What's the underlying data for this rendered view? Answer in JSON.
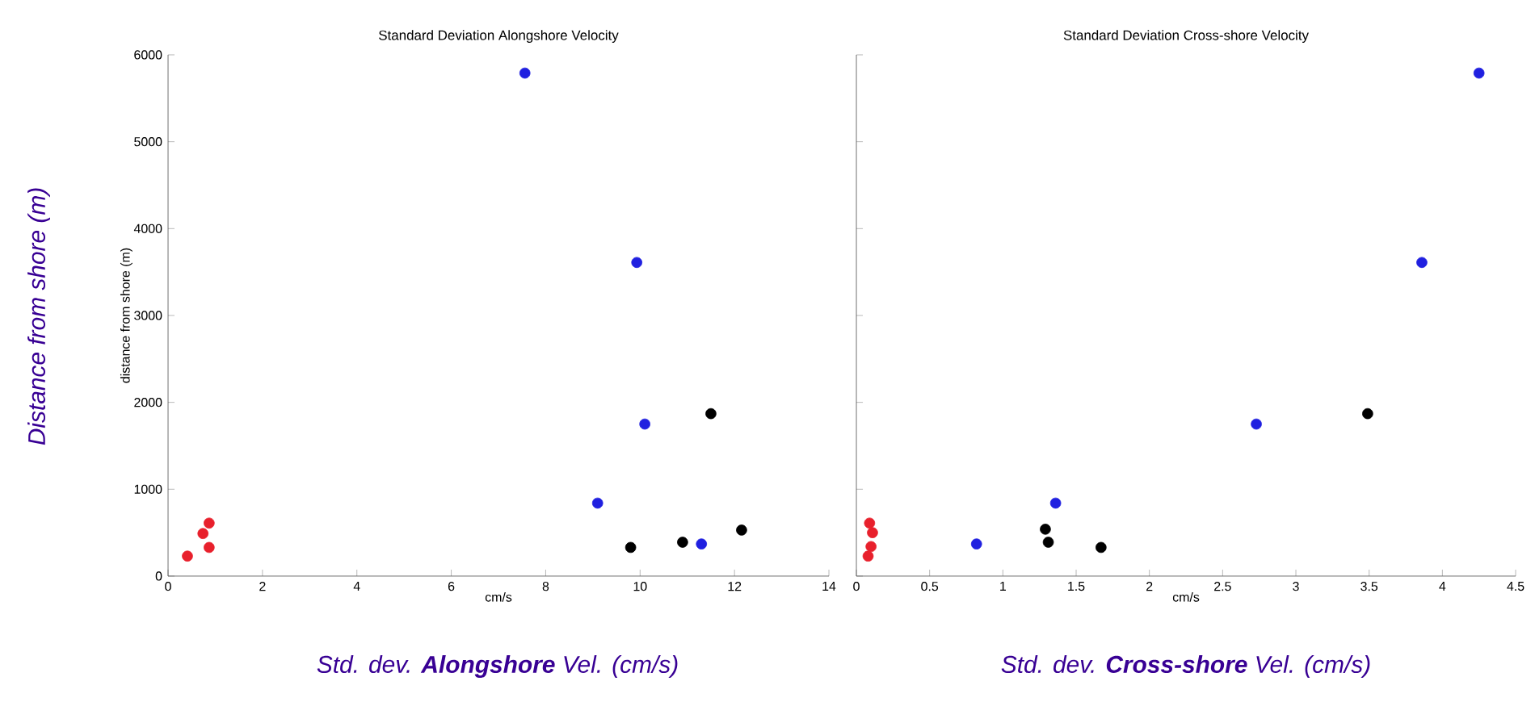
{
  "chart_data": [
    {
      "type": "scatter",
      "title": "Standard Deviation Alongshore Velocity",
      "xlabel": "cm/s",
      "ylabel": "distance from shore (m)",
      "xlim": [
        0,
        14
      ],
      "xticks": [
        0,
        2,
        4,
        6,
        8,
        10,
        12,
        14
      ],
      "ylim": [
        0,
        6000
      ],
      "yticks": [
        0,
        1000,
        2000,
        3000,
        4000,
        5000,
        6000
      ],
      "series": [
        {
          "color": "#2020e0",
          "x": [
            7.56,
            9.93,
            10.1,
            9.1,
            11.3
          ],
          "values": [
            5790,
            3610,
            1750,
            840,
            370
          ]
        },
        {
          "color": "#000000",
          "x": [
            11.5,
            12.15,
            10.9,
            9.8
          ],
          "values": [
            1870,
            530,
            390,
            330
          ]
        },
        {
          "color": "#e8202c",
          "x": [
            0.41,
            0.74,
            0.87,
            0.87
          ],
          "values": [
            230,
            490,
            610,
            330
          ]
        }
      ],
      "annotations": [
        "Distance from shore (m)",
        "Std. dev. **Alongshore** Vel. (cm/s)"
      ]
    },
    {
      "type": "scatter",
      "title": "Standard Deviation Cross-shore Velocity",
      "xlabel": "cm/s",
      "tick_labels": "x",
      "xlim": [
        0,
        4.5
      ],
      "xticks": [
        0,
        0.5,
        1,
        1.5,
        2,
        2.5,
        3,
        3.5,
        4,
        4.5
      ],
      "ylim": [
        0,
        6000
      ],
      "yticks": [
        0,
        1000,
        2000,
        3000,
        4000,
        5000,
        6000
      ],
      "series": [
        {
          "color": "#2020e0",
          "x": [
            4.25,
            3.86,
            2.73,
            1.36,
            0.82
          ],
          "values": [
            5790,
            3610,
            1750,
            840,
            370
          ]
        },
        {
          "color": "#000000",
          "x": [
            3.49,
            1.29,
            1.31,
            1.67
          ],
          "values": [
            1870,
            540,
            390,
            330
          ]
        },
        {
          "color": "#e8202c",
          "x": [
            0.09,
            0.11,
            0.1,
            0.08
          ],
          "values": [
            610,
            500,
            340,
            230
          ]
        }
      ],
      "annotations": [
        "Std. dev. **Cross-shore** Vel. (cm/s)"
      ]
    }
  ]
}
